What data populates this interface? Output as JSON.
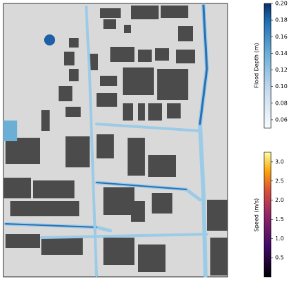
{
  "colorbars": [
    {
      "label": "Flood Depth (m)",
      "lim": [
        0.05,
        0.2
      ],
      "ticks": [
        0.06,
        0.08,
        {
          "value": 0.1,
          "label": "0.10"
        },
        0.12,
        0.14,
        0.16,
        0.18,
        {
          "value": 0.2,
          "label": "0.20"
        }
      ]
    },
    {
      "label": "Speed (m/s)",
      "lim": [
        0,
        3.25
      ],
      "ticks": [
        0.5,
        {
          "value": 1,
          "label": "1.0"
        },
        1.5,
        {
          "value": 2,
          "label": "2.0"
        },
        2.5,
        {
          "value": 3,
          "label": "3.0"
        }
      ]
    }
  ]
}
